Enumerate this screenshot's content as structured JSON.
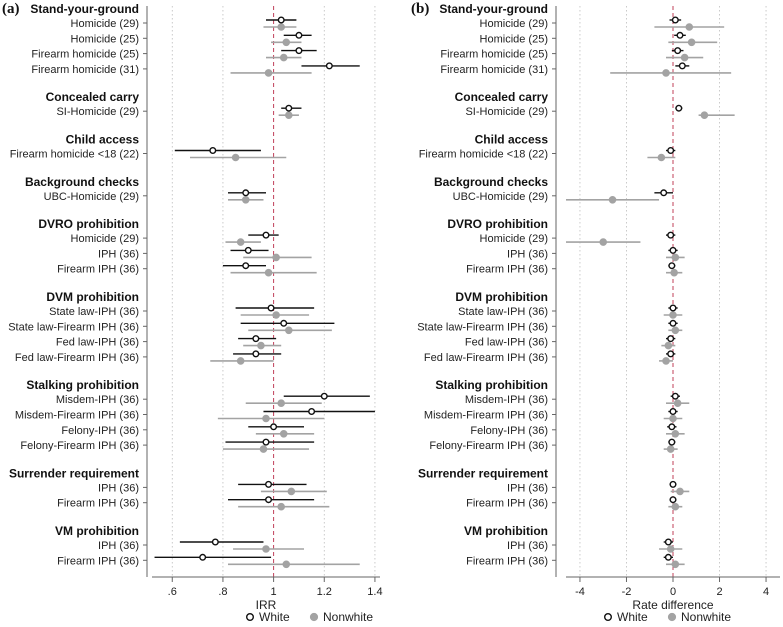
{
  "legend": {
    "white": "White",
    "nonwhite": "Nonwhite"
  },
  "colors": {
    "white": "#111111",
    "nonwhite": "#a3a3a3",
    "ref": "#c0405a",
    "grid": "#bdbdbd",
    "axis": "#666666"
  },
  "chart_data": [
    {
      "panel": "(a)",
      "type": "scatter",
      "subtype": "dot-and-whisker",
      "xlabel": "IRR",
      "xlim": [
        0.52,
        1.42
      ],
      "ticks": [
        0.6,
        0.8,
        1.0,
        1.2,
        1.4
      ],
      "tick_labels": [
        ".6",
        ".8",
        "1",
        "1.2",
        "1.4"
      ],
      "reference": 1.0,
      "groups": [
        {
          "name": "Stand-your-ground",
          "rows": [
            {
              "label": "Homicide (29)",
              "white": [
                1.03,
                0.97,
                1.09
              ],
              "nonwhite": [
                1.03,
                0.96,
                1.09
              ]
            },
            {
              "label": "Homicide (25)",
              "white": [
                1.1,
                1.04,
                1.15
              ],
              "nonwhite": [
                1.05,
                0.99,
                1.11
              ]
            },
            {
              "label": "Firearm homicide (25)",
              "white": [
                1.1,
                1.03,
                1.17
              ],
              "nonwhite": [
                1.04,
                0.97,
                1.11
              ]
            },
            {
              "label": "Firearm homicide (31)",
              "white": [
                1.22,
                1.11,
                1.34
              ],
              "nonwhite": [
                0.98,
                0.83,
                1.15
              ]
            }
          ]
        },
        {
          "name": "Concealed carry",
          "rows": [
            {
              "label": "SI-Homicide (29)",
              "white": [
                1.06,
                1.03,
                1.11
              ],
              "nonwhite": [
                1.06,
                1.02,
                1.1
              ]
            }
          ]
        },
        {
          "name": "Child access",
          "rows": [
            {
              "label": "Firearm homicide <18 (22)",
              "white": [
                0.76,
                0.61,
                0.95
              ],
              "nonwhite": [
                0.85,
                0.67,
                1.05
              ]
            }
          ]
        },
        {
          "name": "Background checks",
          "rows": [
            {
              "label": "UBC-Homicide (29)",
              "white": [
                0.89,
                0.82,
                0.97
              ],
              "nonwhite": [
                0.89,
                0.82,
                0.96
              ]
            }
          ]
        },
        {
          "name": "DVRO prohibition",
          "rows": [
            {
              "label": "Homicide (29)",
              "white": [
                0.97,
                0.9,
                1.02
              ],
              "nonwhite": [
                0.87,
                0.81,
                0.95
              ]
            },
            {
              "label": "IPH (36)",
              "white": [
                0.9,
                0.83,
                0.98
              ],
              "nonwhite": [
                1.01,
                0.88,
                1.15
              ]
            },
            {
              "label": "Firearm IPH (36)",
              "white": [
                0.89,
                0.8,
                0.97
              ],
              "nonwhite": [
                0.98,
                0.83,
                1.17
              ]
            }
          ]
        },
        {
          "name": "DVM prohibition",
          "rows": [
            {
              "label": "State law-IPH (36)",
              "white": [
                0.99,
                0.85,
                1.16
              ],
              "nonwhite": [
                1.01,
                0.87,
                1.14
              ]
            },
            {
              "label": "State law-Firearm IPH (36)",
              "white": [
                1.04,
                0.87,
                1.24
              ],
              "nonwhite": [
                1.06,
                0.9,
                1.23
              ]
            },
            {
              "label": "Fed law-IPH (36)",
              "white": [
                0.93,
                0.86,
                1.01
              ],
              "nonwhite": [
                0.95,
                0.88,
                1.03
              ]
            },
            {
              "label": "Fed law-Firearm IPH (36)",
              "white": [
                0.93,
                0.84,
                1.03
              ],
              "nonwhite": [
                0.87,
                0.75,
                1.0
              ]
            }
          ]
        },
        {
          "name": "Stalking prohibition",
          "rows": [
            {
              "label": "Misdem-IPH (36)",
              "white": [
                1.2,
                1.04,
                1.38
              ],
              "nonwhite": [
                1.03,
                0.89,
                1.19
              ]
            },
            {
              "label": "Misdem-Firearm IPH (36)",
              "white": [
                1.15,
                0.96,
                1.4
              ],
              "nonwhite": [
                0.97,
                0.78,
                1.2
              ]
            },
            {
              "label": "Felony-IPH (36)",
              "white": [
                1.0,
                0.9,
                1.12
              ],
              "nonwhite": [
                1.04,
                0.93,
                1.16
              ]
            },
            {
              "label": "Felony-Firearm IPH (36)",
              "white": [
                0.97,
                0.81,
                1.16
              ],
              "nonwhite": [
                0.96,
                0.8,
                1.14
              ]
            }
          ]
        },
        {
          "name": "Surrender requirement",
          "rows": [
            {
              "label": "IPH (36)",
              "white": [
                0.98,
                0.86,
                1.13
              ],
              "nonwhite": [
                1.07,
                0.95,
                1.21
              ]
            },
            {
              "label": "Firearm IPH (36)",
              "white": [
                0.98,
                0.82,
                1.16
              ],
              "nonwhite": [
                1.03,
                0.86,
                1.22
              ]
            }
          ]
        },
        {
          "name": "VM prohibition",
          "rows": [
            {
              "label": "IPH (36)",
              "white": [
                0.77,
                0.63,
                0.96
              ],
              "nonwhite": [
                0.97,
                0.84,
                1.12
              ]
            },
            {
              "label": "Firearm IPH (36)",
              "white": [
                0.72,
                0.53,
                0.99
              ],
              "nonwhite": [
                1.05,
                0.82,
                1.34
              ]
            }
          ]
        }
      ]
    },
    {
      "panel": "(b)",
      "type": "scatter",
      "subtype": "dot-and-whisker",
      "xlabel": "Rate difference",
      "xlim": [
        -4.6,
        4.6
      ],
      "ticks": [
        -4,
        -2,
        0,
        2,
        4
      ],
      "tick_labels": [
        "-4",
        "-2",
        "0",
        "2",
        "4"
      ],
      "reference": 0,
      "groups": [
        {
          "name": "Stand-your-ground",
          "rows": [
            {
              "label": "Homicide (29)",
              "white": [
                0.1,
                -0.15,
                0.35
              ],
              "nonwhite": [
                0.7,
                -0.8,
                2.2
              ]
            },
            {
              "label": "Homicide (25)",
              "white": [
                0.3,
                0.05,
                0.55
              ],
              "nonwhite": [
                0.8,
                -0.2,
                1.9
              ]
            },
            {
              "label": "Firearm homicide (25)",
              "white": [
                0.2,
                -0.05,
                0.45
              ],
              "nonwhite": [
                0.5,
                -0.3,
                1.3
              ]
            },
            {
              "label": "Firearm homicide (31)",
              "white": [
                0.4,
                0.1,
                0.7
              ],
              "nonwhite": [
                -0.3,
                -2.7,
                2.5
              ]
            }
          ]
        },
        {
          "name": "Concealed carry",
          "rows": [
            {
              "label": "SI-Homicide (29)",
              "white": [
                0.25,
                0.1,
                0.4
              ],
              "nonwhite": [
                1.35,
                1.1,
                2.65
              ]
            }
          ]
        },
        {
          "name": "Child access",
          "rows": [
            {
              "label": "Firearm homicide <18 (22)",
              "white": [
                -0.1,
                -0.3,
                0.1
              ],
              "nonwhite": [
                -0.5,
                -1.1,
                0.1
              ]
            }
          ]
        },
        {
          "name": "Background checks",
          "rows": [
            {
              "label": "UBC-Homicide (29)",
              "white": [
                -0.4,
                -0.8,
                0.0
              ],
              "nonwhite": [
                -2.6,
                -4.6,
                -0.6
              ]
            }
          ]
        },
        {
          "name": "DVRO prohibition",
          "rows": [
            {
              "label": "Homicide (29)",
              "white": [
                -0.1,
                -0.3,
                0.1
              ],
              "nonwhite": [
                -3.0,
                -4.6,
                -1.4
              ]
            },
            {
              "label": "IPH (36)",
              "white": [
                0.0,
                -0.2,
                0.2
              ],
              "nonwhite": [
                0.1,
                -0.3,
                0.5
              ]
            },
            {
              "label": "Firearm IPH (36)",
              "white": [
                -0.05,
                -0.2,
                0.1
              ],
              "nonwhite": [
                0.05,
                -0.3,
                0.4
              ]
            }
          ]
        },
        {
          "name": "DVM prohibition",
          "rows": [
            {
              "label": "State law-IPH (36)",
              "white": [
                0.0,
                -0.2,
                0.2
              ],
              "nonwhite": [
                0.0,
                -0.4,
                0.4
              ]
            },
            {
              "label": "State law-Firearm IPH (36)",
              "white": [
                0.0,
                -0.2,
                0.2
              ],
              "nonwhite": [
                0.1,
                -0.2,
                0.4
              ]
            },
            {
              "label": "Fed law-IPH (36)",
              "white": [
                -0.1,
                -0.3,
                0.1
              ],
              "nonwhite": [
                -0.2,
                -0.5,
                0.1
              ]
            },
            {
              "label": "Fed law-Firearm IPH (36)",
              "white": [
                -0.1,
                -0.3,
                0.1
              ],
              "nonwhite": [
                -0.3,
                -0.6,
                0.0
              ]
            }
          ]
        },
        {
          "name": "Stalking prohibition",
          "rows": [
            {
              "label": "Misdem-IPH (36)",
              "white": [
                0.1,
                -0.1,
                0.3
              ],
              "nonwhite": [
                0.2,
                -0.3,
                0.7
              ]
            },
            {
              "label": "Misdem-Firearm IPH (36)",
              "white": [
                0.0,
                -0.2,
                0.2
              ],
              "nonwhite": [
                0.0,
                -0.4,
                0.4
              ]
            },
            {
              "label": "Felony-IPH (36)",
              "white": [
                -0.05,
                -0.25,
                0.15
              ],
              "nonwhite": [
                0.1,
                -0.3,
                0.5
              ]
            },
            {
              "label": "Felony-Firearm IPH (36)",
              "white": [
                -0.05,
                -0.2,
                0.1
              ],
              "nonwhite": [
                -0.1,
                -0.4,
                0.2
              ]
            }
          ]
        },
        {
          "name": "Surrender requirement",
          "rows": [
            {
              "label": "IPH (36)",
              "white": [
                0.0,
                -0.15,
                0.15
              ],
              "nonwhite": [
                0.3,
                -0.1,
                0.7
              ]
            },
            {
              "label": "Firearm IPH (36)",
              "white": [
                0.0,
                -0.15,
                0.15
              ],
              "nonwhite": [
                0.1,
                -0.2,
                0.4
              ]
            }
          ]
        },
        {
          "name": "VM prohibition",
          "rows": [
            {
              "label": "IPH (36)",
              "white": [
                -0.2,
                -0.4,
                0.0
              ],
              "nonwhite": [
                -0.1,
                -0.6,
                0.4
              ]
            },
            {
              "label": "Firearm IPH (36)",
              "white": [
                -0.2,
                -0.4,
                0.0
              ],
              "nonwhite": [
                0.1,
                -0.3,
                0.5
              ]
            }
          ]
        }
      ]
    }
  ]
}
